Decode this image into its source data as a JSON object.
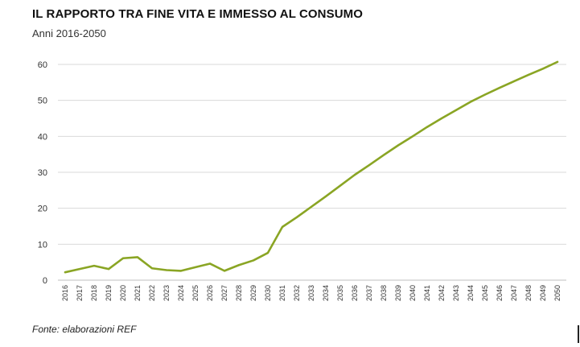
{
  "chart_data": {
    "type": "line",
    "title": "IL RAPPORTO TRA FINE VITA E IMMESSO AL CONSUMO",
    "subtitle": "Anni 2016-2050",
    "source": "Fonte: elaborazioni REF",
    "xlabel": "",
    "ylabel": "",
    "ylim": [
      0,
      60
    ],
    "yticks": [
      0,
      10,
      20,
      30,
      40,
      50,
      60
    ],
    "grid": true,
    "legend": "none",
    "color": "#8aa524",
    "categories": [
      "2016",
      "2017",
      "2018",
      "2019",
      "2020",
      "2021",
      "2022",
      "2023",
      "2024",
      "2025",
      "2026",
      "2027",
      "2028",
      "2029",
      "2030",
      "2031",
      "2032",
      "2033",
      "2034",
      "2035",
      "2036",
      "2037",
      "2038",
      "2039",
      "2040",
      "2041",
      "2042",
      "2043",
      "2044",
      "2045",
      "2046",
      "2047",
      "2048",
      "2049",
      "2050"
    ],
    "series": [
      {
        "values": [
          2.2,
          3.1,
          4.0,
          3.1,
          6.1,
          6.4,
          3.3,
          2.8,
          2.6,
          3.6,
          4.6,
          2.6,
          4.2,
          5.5,
          7.6,
          14.8,
          17.5,
          20.4,
          23.3,
          26.3,
          29.3,
          32.0,
          34.8,
          37.5,
          40.0,
          42.6,
          45.0,
          47.3,
          49.6,
          51.6,
          53.5,
          55.3,
          57.1,
          58.8,
          60.7
        ]
      }
    ]
  }
}
